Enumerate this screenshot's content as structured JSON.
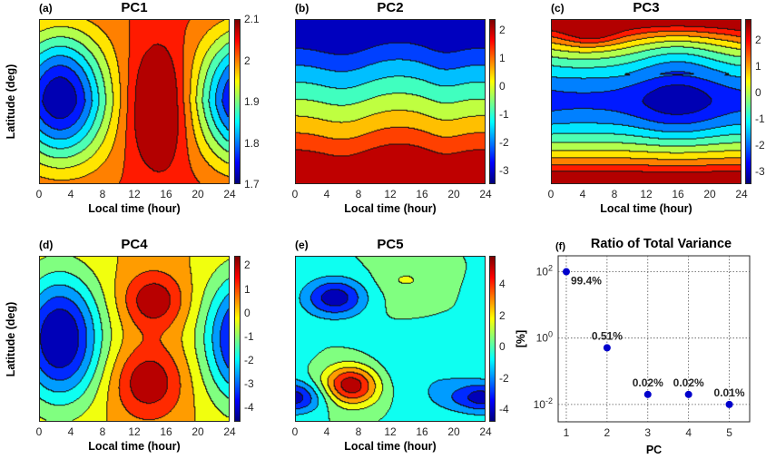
{
  "figure": {
    "shared_xlabel": "Local time (hour)",
    "shared_ylabel": "Latitude (deg)",
    "x_ticks": [
      "0",
      "4",
      "8",
      "12",
      "16",
      "20",
      "24"
    ],
    "y_ticks": [
      "60",
      "30",
      "0",
      "-30",
      "-60"
    ]
  },
  "chart_data": [
    {
      "type": "heatmap",
      "panel": "(a)",
      "title": "PC1",
      "xlabel": "Local time (hour)",
      "ylabel": "Latitude (deg)",
      "x_range": [
        0,
        24
      ],
      "y_range": [
        -90,
        90
      ],
      "x_ticks": [
        "0",
        "4",
        "8",
        "12",
        "16",
        "20",
        "24"
      ],
      "y_ticks": [
        "60",
        "30",
        "0",
        "-30",
        "-60"
      ],
      "colorbar": {
        "range": [
          1.7,
          2.1
        ],
        "ticks": [
          "2.1",
          "2",
          "1.9",
          "1.8",
          "1.7"
        ],
        "colormap": "jet"
      },
      "description": "Filled contours: minimum (~1.72) centered near 0-4 h at equator, maximum (~2.08) band near 13-17 h"
    },
    {
      "type": "heatmap",
      "panel": "(b)",
      "title": "PC2",
      "xlabel": "Local time (hour)",
      "ylabel": "",
      "x_range": [
        0,
        24
      ],
      "y_range": [
        -90,
        90
      ],
      "x_ticks": [
        "0",
        "4",
        "8",
        "12",
        "16",
        "20",
        "24"
      ],
      "y_ticks": [
        "60",
        "30",
        "0",
        "-30",
        "-60"
      ],
      "colorbar": {
        "range": [
          -3.5,
          2.4
        ],
        "ticks": [
          "2",
          "1",
          "0",
          "-1",
          "-2",
          "-3"
        ],
        "colormap": "jet"
      },
      "description": "Latitudinal gradient: negative (blue) in north, positive (red) in south, with wave undulation peaking near 6 h and 19 h"
    },
    {
      "type": "heatmap",
      "panel": "(c)",
      "title": "PC3",
      "xlabel": "Local time (hour)",
      "ylabel": "",
      "x_range": [
        0,
        24
      ],
      "y_range": [
        -90,
        90
      ],
      "x_ticks": [
        "0",
        "4",
        "8",
        "12",
        "16",
        "20",
        "24"
      ],
      "y_ticks": [
        "60",
        "30",
        "0",
        "-30",
        "-60"
      ],
      "colorbar": {
        "range": [
          -3.5,
          2.8
        ],
        "ticks": [
          "2",
          "1",
          "0",
          "-1",
          "-2",
          "-3"
        ],
        "colormap": "jet"
      },
      "description": "Positive at high latitudes (max near 5 h, 75N), minimum near 16 h at equator"
    },
    {
      "type": "heatmap",
      "panel": "(d)",
      "title": "PC4",
      "xlabel": "Local time (hour)",
      "ylabel": "Latitude (deg)",
      "x_range": [
        0,
        24
      ],
      "y_range": [
        -90,
        90
      ],
      "x_ticks": [
        "0",
        "4",
        "8",
        "12",
        "16",
        "20",
        "24"
      ],
      "y_ticks": [
        "60",
        "30",
        "0",
        "-30",
        "-60"
      ],
      "colorbar": {
        "range": [
          -4.6,
          2.4
        ],
        "ticks": [
          "2",
          "1",
          "0",
          "-1",
          "-2",
          "-3",
          "-4"
        ],
        "colormap": "jet"
      },
      "description": "Minimum near 2-4 h at equator, two maxima near 14-15 h at ~45N and ~45S"
    },
    {
      "type": "heatmap",
      "panel": "(e)",
      "title": "PC5",
      "xlabel": "Local time (hour)",
      "ylabel": "",
      "x_range": [
        0,
        24
      ],
      "y_range": [
        -90,
        90
      ],
      "x_ticks": [
        "0",
        "4",
        "8",
        "12",
        "16",
        "20",
        "24"
      ],
      "y_ticks": [
        "60",
        "30",
        "0",
        "-30",
        "-60"
      ],
      "colorbar": {
        "range": [
          -4.8,
          5.8
        ],
        "ticks": [
          "4",
          "2",
          "0",
          "-2",
          "-4"
        ],
        "colormap": "jet"
      },
      "description": "Maximum near 7 h at ~55S, minimum near 5 h at ~45N, secondary minimum near 23 h at ~65S"
    },
    {
      "type": "scatter",
      "panel": "(f)",
      "title": "Ratio of Total Variance",
      "xlabel": "PC",
      "ylabel": "[%]",
      "yscale": "log",
      "x": [
        1,
        2,
        3,
        4,
        5
      ],
      "y": [
        99.4,
        0.51,
        0.02,
        0.02,
        0.01
      ],
      "labels": [
        "99.4%",
        "0.51%",
        "0.02%",
        "0.02%",
        "0.01%"
      ],
      "xlim": [
        0.8,
        5.5
      ],
      "ylim": [
        0.003,
        300
      ],
      "x_ticks": [
        "1",
        "2",
        "3",
        "4",
        "5"
      ],
      "y_ticks": [
        {
          "base": "10",
          "exp": "2"
        },
        {
          "base": "10",
          "exp": "0"
        },
        {
          "base": "10",
          "exp": "-2"
        }
      ],
      "grid": true,
      "marker_color": "#0000cc"
    }
  ]
}
